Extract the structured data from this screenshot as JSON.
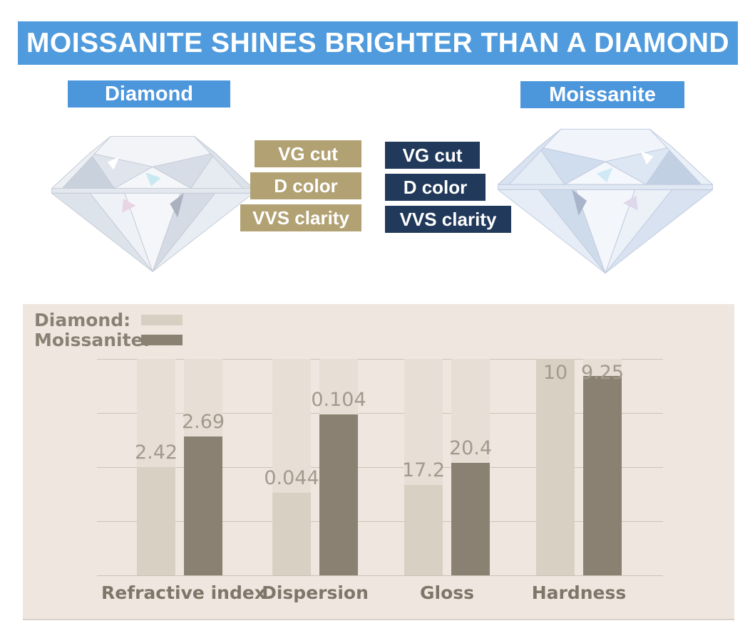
{
  "banner": {
    "title": "MOISSANITE SHINES BRIGHTER THAN A DIAMOND",
    "bg_color": "#4f9bdd"
  },
  "comparison": {
    "left": {
      "label": "Diamond",
      "chip_color": "#4c96dc",
      "spec_bar_color": "#b1a173",
      "specs": [
        "VG cut",
        "D color",
        "VVS clarity"
      ]
    },
    "right": {
      "label": "Moissanite",
      "chip_color": "#4c96dc",
      "spec_bar_color": "#21395a",
      "specs": [
        "VG cut",
        "D color",
        "VVS clarity"
      ]
    }
  },
  "chart_data": {
    "type": "bar",
    "panel_bg": "#efe7df",
    "band_color": "#e7dfd6",
    "gridline_color": "#bfb5aa",
    "gridline_count": 5,
    "value_axis": {
      "tick_labels": [],
      "normalization": "per-category"
    },
    "legend_position": "top-left",
    "legend": [
      {
        "label": "Diamond:",
        "swatch_color": "#d8cfc3"
      },
      {
        "label": "Moissanite:",
        "swatch_color": "#8b8172"
      }
    ],
    "categories": [
      "Refractive index",
      "Dispersion",
      "Gloss",
      "Hardness"
    ],
    "series": [
      {
        "name": "Diamond",
        "color": "#d9d0c4",
        "values": [
          2.42,
          0.044,
          17.2,
          10
        ],
        "labels": [
          "2.42",
          "0.044",
          "17.2",
          "10"
        ],
        "height_fractions": [
          0.5,
          0.38,
          0.418,
          1.0
        ]
      },
      {
        "name": "Moissanite",
        "color": "#8b8172",
        "values": [
          2.69,
          0.104,
          20.4,
          9.25
        ],
        "labels": [
          "2.69",
          "0.104",
          "20.4",
          "9.25"
        ],
        "height_fractions": [
          0.64,
          0.743,
          0.52,
          0.921
        ]
      }
    ]
  }
}
